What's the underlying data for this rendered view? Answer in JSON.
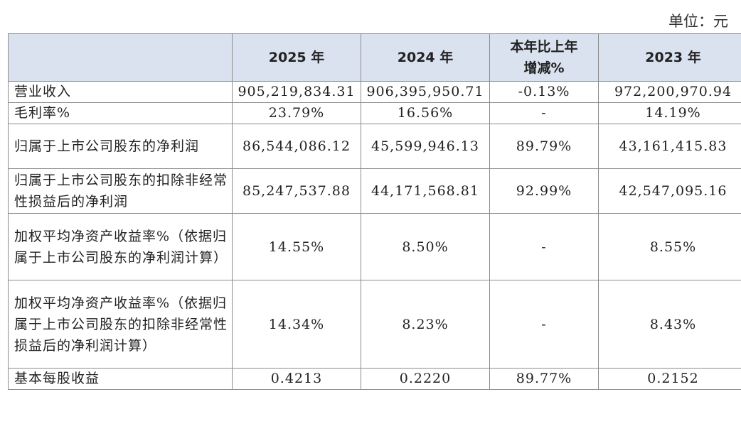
{
  "unit_label": "单位：元",
  "header": {
    "item": "",
    "col_2025": "2025 年",
    "col_2024": "2024 年",
    "col_change_line1": "本年比上年",
    "col_change_line2": "增减%",
    "col_2023": "2023 年"
  },
  "rows": [
    {
      "label": "营业收入",
      "y2025": "905,219,834.31",
      "y2024": "906,395,950.71",
      "change": "-0.13%",
      "y2023": "972,200,970.94"
    },
    {
      "label": "毛利率%",
      "y2025": "23.79%",
      "y2024": "16.56%",
      "change": "-",
      "y2023": "14.19%"
    },
    {
      "label": "归属于上市公司股东的净利润",
      "y2025": "86,544,086.12",
      "y2024": "45,599,946.13",
      "change": "89.79%",
      "y2023": "43,161,415.83"
    },
    {
      "label": "归属于上市公司股东的扣除非经常性损益后的净利润",
      "y2025": "85,247,537.88",
      "y2024": "44,171,568.81",
      "change": "92.99%",
      "y2023": "42,547,095.16"
    },
    {
      "label": "加权平均净资产收益率%（依据归属于上市公司股东的净利润计算）",
      "y2025": "14.55%",
      "y2024": "8.50%",
      "change": "-",
      "y2023": "8.55%"
    },
    {
      "label": "加权平均净资产收益率%（依据归属于上市公司股东的扣除非经常性损益后的净利润计算）",
      "y2025": "14.34%",
      "y2024": "8.23%",
      "change": "-",
      "y2023": "8.43%"
    },
    {
      "label": "基本每股收益",
      "y2025": "0.4213",
      "y2024": "0.2220",
      "change": "89.77%",
      "y2023": "0.2152"
    }
  ]
}
